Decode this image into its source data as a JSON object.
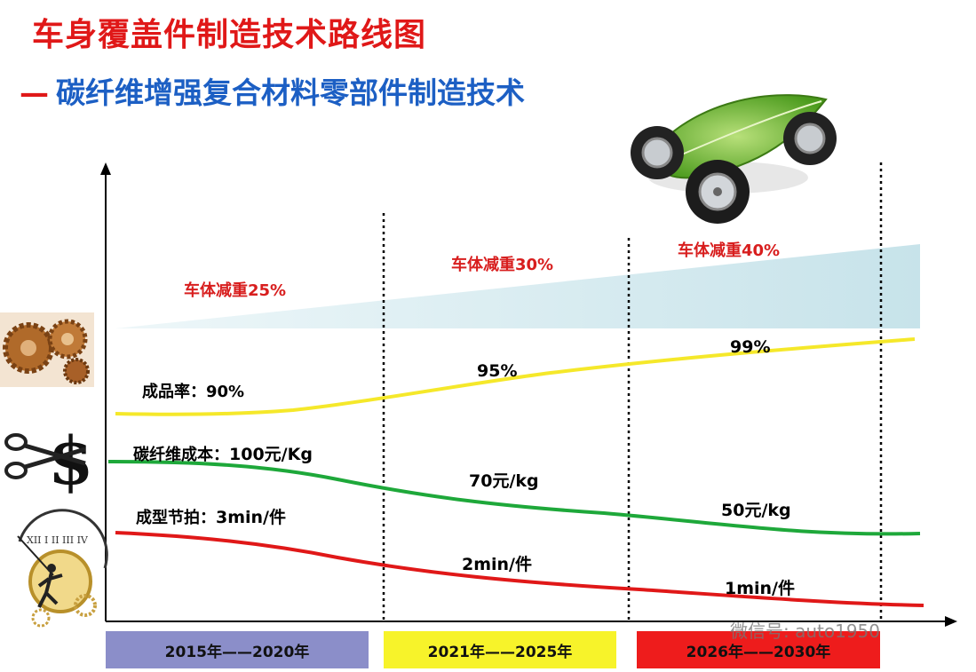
{
  "title": "车身覆盖件制造技术路线图",
  "subtitle_dash": "—",
  "subtitle": "碳纤维增强复合材料零部件制造技术",
  "weight_reduction": [
    "车体减重25%",
    "车体减重30%",
    "车体减重40%"
  ],
  "yield": {
    "label": "成品率：90%",
    "values": [
      "95%",
      "99%"
    ],
    "color": "#f5e82a"
  },
  "cost": {
    "label_text": "碳纤维成本：",
    "label_value": "100元/Kg",
    "values": [
      "70元/kg",
      "50元/kg"
    ],
    "color": "#1ea83a"
  },
  "cycle": {
    "label_text": "成型节拍：",
    "label_value": "3min/件",
    "values": [
      "2min/件",
      "1min/件"
    ],
    "color": "#e01818"
  },
  "periods": [
    {
      "label": "2015年——2020年",
      "color": "#8b8ec9"
    },
    {
      "label": "2021年——2025年",
      "color": "#f7f32a"
    },
    {
      "label": "2026年——2030年",
      "color": "#ee1c1c"
    }
  ],
  "watermark": "微信号: auto1950",
  "icons": [
    "gears-icon",
    "scissors-dollar-icon",
    "clock-runner-icon",
    "leaf-car-icon"
  ]
}
